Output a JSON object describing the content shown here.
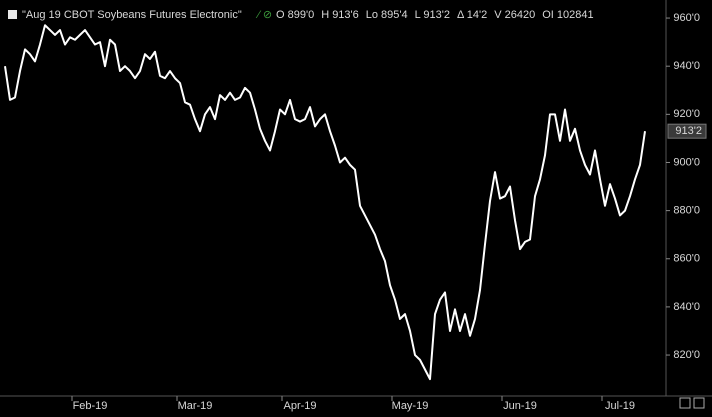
{
  "chart_data": {
    "type": "line",
    "title": "\"Aug 19 CBOT Soybeans Futures Electronic\"",
    "stats": [
      "O 899'0",
      "H 913'6",
      "Lo 895'4",
      "L 913'2",
      "Δ 14'2",
      "V 26420",
      "OI 102841"
    ],
    "last_price_label": "913'2",
    "categories": [
      null,
      null,
      null,
      null,
      null,
      null,
      null,
      null,
      null,
      null,
      null,
      null,
      null,
      null,
      null,
      null,
      null,
      "Feb-19",
      null,
      null,
      null,
      null,
      null,
      null,
      null,
      null,
      null,
      null,
      null,
      null,
      null,
      null,
      null,
      null,
      null,
      null,
      null,
      null,
      "Mar-19",
      null,
      null,
      null,
      null,
      null,
      null,
      null,
      null,
      null,
      null,
      null,
      null,
      null,
      null,
      null,
      null,
      null,
      null,
      null,
      null,
      "Apr-19",
      null,
      null,
      null,
      null,
      null,
      null,
      null,
      null,
      null,
      null,
      null,
      null,
      null,
      null,
      null,
      null,
      null,
      null,
      null,
      null,
      null,
      "May-19",
      null,
      null,
      null,
      null,
      null,
      null,
      null,
      null,
      null,
      null,
      null,
      null,
      null,
      null,
      null,
      null,
      null,
      null,
      null,
      null,
      null,
      "Jun-19",
      null,
      null,
      null,
      null,
      null,
      null,
      null,
      null,
      null,
      null,
      null,
      null,
      null,
      null,
      null,
      null,
      null,
      null,
      null,
      "Jul-19",
      null,
      null,
      null,
      null,
      null
    ],
    "series": [
      {
        "color": "#ffffff",
        "values": [
          940,
          926,
          927,
          938,
          947,
          945,
          942,
          949,
          957,
          955,
          953,
          955,
          949,
          952,
          951,
          953,
          955,
          952,
          949,
          950,
          940,
          951,
          949,
          938,
          940,
          938,
          935,
          938,
          945,
          943,
          946,
          936,
          935,
          938,
          935,
          933,
          925,
          924,
          918,
          913,
          920,
          923,
          918,
          928,
          926,
          929,
          926,
          927,
          931,
          929,
          922,
          914,
          909,
          905,
          913,
          922,
          920,
          926,
          918,
          917,
          918,
          923,
          915,
          918,
          920,
          913,
          907,
          900,
          902,
          899,
          897,
          882,
          878,
          874,
          870,
          864,
          859,
          849,
          843,
          835,
          837,
          830,
          820,
          818,
          814,
          810,
          837,
          843,
          846,
          830,
          839,
          830,
          837,
          828,
          835,
          847,
          866,
          884,
          896,
          885,
          886,
          890,
          876,
          864,
          867,
          868,
          886,
          893,
          903,
          920,
          920,
          909,
          922,
          909,
          914,
          905,
          899,
          895,
          905,
          893,
          882,
          891,
          885,
          878,
          880,
          886,
          893,
          899,
          913
        ]
      }
    ],
    "ylim": [
      803.4,
      967.5
    ],
    "yticks": [
      {
        "value": 820,
        "label": "820'0"
      },
      {
        "value": 840,
        "label": "840'0"
      },
      {
        "value": 860,
        "label": "860'0"
      },
      {
        "value": 880,
        "label": "880'0"
      },
      {
        "value": 900,
        "label": "900'0"
      },
      {
        "value": 920,
        "label": "920'0"
      },
      {
        "value": 940,
        "label": "940'0"
      },
      {
        "value": 960,
        "label": "960'0"
      }
    ],
    "grid": false
  }
}
